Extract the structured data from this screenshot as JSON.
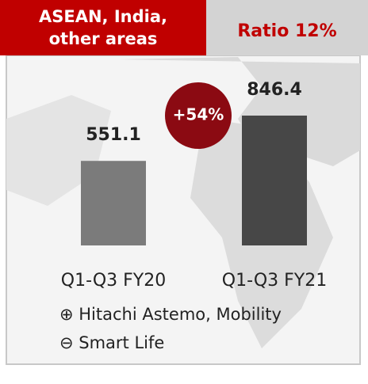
{
  "header": {
    "title_lines": [
      "ASEAN, India,",
      "other areas"
    ],
    "ratio": "Ratio 12%"
  },
  "chart_data": {
    "type": "bar",
    "categories": [
      "Q1-Q3 FY20",
      "Q1-Q3 FY21"
    ],
    "series": [
      {
        "values": [
          551.1,
          846.4
        ],
        "colors": [
          "#7b7b7b",
          "#474747"
        ]
      }
    ],
    "annotation": "+54%"
  },
  "notes": [
    "⊕ Hitachi Astemo, Mobility",
    "⊖ Smart Life"
  ]
}
